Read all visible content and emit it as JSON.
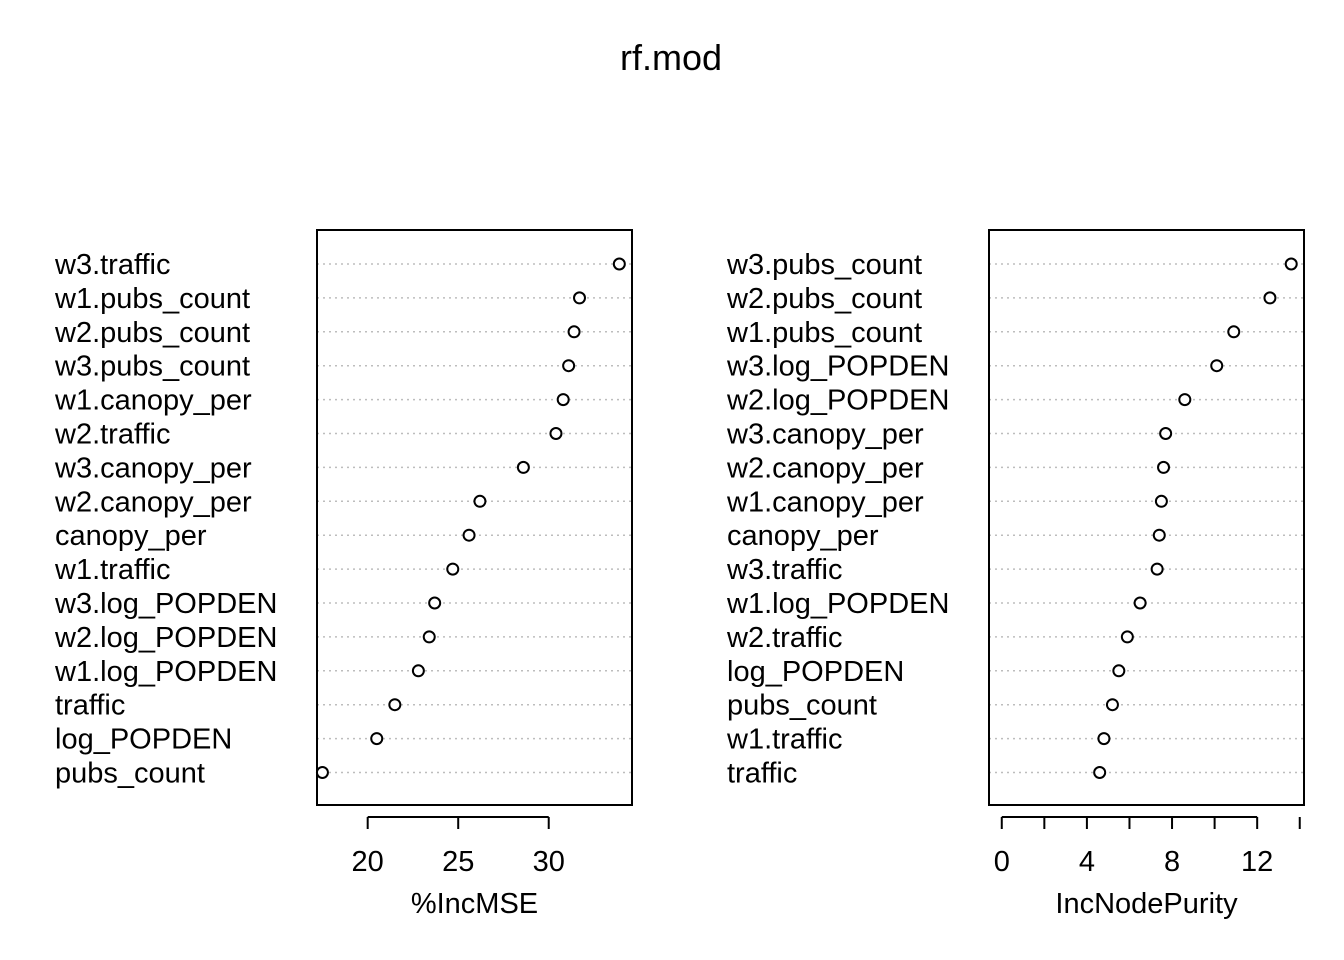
{
  "title": "rf.mod",
  "chart_data": [
    {
      "type": "scatter",
      "xlabel": "%IncMSE",
      "xlim": [
        17.2,
        34.6
      ],
      "xticks": [
        20,
        25,
        30
      ],
      "labels": [
        "w3.traffic",
        "w1.pubs_count",
        "w2.pubs_count",
        "w3.pubs_count",
        "w1.canopy_per",
        "w2.traffic",
        "w3.canopy_per",
        "w2.canopy_per",
        "canopy_per",
        "w1.traffic",
        "w3.log_POPDEN",
        "w2.log_POPDEN",
        "w1.log_POPDEN",
        "traffic",
        "log_POPDEN",
        "pubs_count"
      ],
      "values": [
        33.9,
        31.7,
        31.4,
        31.1,
        30.8,
        30.4,
        28.6,
        26.2,
        25.6,
        24.7,
        23.7,
        23.4,
        22.8,
        21.5,
        20.5,
        17.5
      ]
    },
    {
      "type": "scatter",
      "xlabel": "IncNodePurity",
      "xlim": [
        -0.6,
        14.2
      ],
      "xticks": [
        0,
        4,
        8,
        12
      ],
      "labels": [
        "w3.pubs_count",
        "w2.pubs_count",
        "w1.pubs_count",
        "w3.log_POPDEN",
        "w2.log_POPDEN",
        "w3.canopy_per",
        "w2.canopy_per",
        "w1.canopy_per",
        "canopy_per",
        "w3.traffic",
        "w1.log_POPDEN",
        "w2.traffic",
        "log_POPDEN",
        "pubs_count",
        "w1.traffic",
        "traffic"
      ],
      "values": [
        13.6,
        12.6,
        10.9,
        10.1,
        8.6,
        7.7,
        7.6,
        7.5,
        7.4,
        7.3,
        6.5,
        5.9,
        5.5,
        5.2,
        4.8,
        4.6
      ]
    }
  ]
}
